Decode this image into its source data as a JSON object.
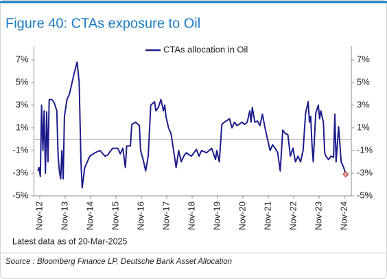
{
  "chart_data": {
    "type": "line",
    "title": "Figure 40: CTAs exposure to Oil",
    "note": "Latest data as of 20-Mar-2025",
    "source": "Source : Bloomberg Finance LP, Deutsche Bank Asset Allocation",
    "legend_position": "top",
    "xlim": [
      2012.6,
      2025.1
    ],
    "xticks": [
      {
        "value": 2012.83,
        "label": "Nov-12"
      },
      {
        "value": 2013.83,
        "label": "Nov-13"
      },
      {
        "value": 2014.83,
        "label": "Nov-14"
      },
      {
        "value": 2015.83,
        "label": "Nov-15"
      },
      {
        "value": 2016.83,
        "label": "Nov-16"
      },
      {
        "value": 2017.83,
        "label": "Nov-17"
      },
      {
        "value": 2018.83,
        "label": "Nov-18"
      },
      {
        "value": 2019.83,
        "label": "Nov-19"
      },
      {
        "value": 2020.83,
        "label": "Nov-20"
      },
      {
        "value": 2021.83,
        "label": "Nov-21"
      },
      {
        "value": 2022.83,
        "label": "Nov-22"
      },
      {
        "value": 2023.83,
        "label": "Nov-23"
      },
      {
        "value": 2024.83,
        "label": "Nov-24"
      }
    ],
    "ylim": [
      -5,
      7
    ],
    "yticks": [
      {
        "value": 7,
        "label": "7%"
      },
      {
        "value": 5,
        "label": "5%"
      },
      {
        "value": 3,
        "label": "3%"
      },
      {
        "value": 1,
        "label": "1%"
      },
      {
        "value": -1,
        "label": "-1%"
      },
      {
        "value": -3,
        "label": "-3%"
      },
      {
        "value": -5,
        "label": "-5%"
      }
    ],
    "y2lim": [
      -5,
      7
    ],
    "y2ticks": [
      {
        "value": 7,
        "label": "7%"
      },
      {
        "value": 5,
        "label": "5%"
      },
      {
        "value": 3,
        "label": "3%"
      },
      {
        "value": 1,
        "label": "1%"
      },
      {
        "value": -1,
        "label": "-1%"
      },
      {
        "value": -3,
        "label": "-3%"
      },
      {
        "value": -5,
        "label": "-5%"
      }
    ],
    "zero_line": true,
    "last_point_marker_color": "#f29a9a",
    "x": [
      2012.75,
      2012.8,
      2012.85,
      2012.9,
      2012.95,
      2013.0,
      2013.05,
      2013.1,
      2013.15,
      2013.2,
      2013.3,
      2013.4,
      2013.5,
      2013.55,
      2013.6,
      2013.65,
      2013.7,
      2013.75,
      2013.8,
      2013.9,
      2014.0,
      2014.15,
      2014.3,
      2014.38,
      2014.45,
      2014.5,
      2014.6,
      2014.7,
      2014.8,
      2015.0,
      2015.2,
      2015.4,
      2015.5,
      2015.7,
      2015.9,
      2016.0,
      2016.1,
      2016.2,
      2016.25,
      2016.4,
      2016.45,
      2016.6,
      2016.75,
      2016.8,
      2016.9,
      2017.0,
      2017.1,
      2017.2,
      2017.35,
      2017.4,
      2017.5,
      2017.6,
      2017.7,
      2017.75,
      2017.8,
      2017.9,
      2018.0,
      2018.1,
      2018.2,
      2018.3,
      2018.4,
      2018.5,
      2018.6,
      2018.8,
      2019.0,
      2019.1,
      2019.2,
      2019.4,
      2019.6,
      2019.75,
      2019.8,
      2019.9,
      2020.0,
      2020.1,
      2020.3,
      2020.4,
      2020.5,
      2020.6,
      2020.8,
      2020.9,
      2021.0,
      2021.1,
      2021.15,
      2021.2,
      2021.3,
      2021.4,
      2021.5,
      2021.6,
      2021.7,
      2021.8,
      2021.9,
      2022.0,
      2022.1,
      2022.2,
      2022.3,
      2022.4,
      2022.5,
      2022.6,
      2022.7,
      2022.8,
      2022.9,
      2023.0,
      2023.1,
      2023.2,
      2023.3,
      2023.4,
      2023.45,
      2023.5,
      2023.55,
      2023.6,
      2023.7,
      2023.8,
      2023.85,
      2023.9,
      2024.0,
      2024.05,
      2024.1,
      2024.2,
      2024.3,
      2024.4,
      2024.45,
      2024.5,
      2024.6,
      2024.7,
      2024.8,
      2024.88
    ],
    "series": [
      {
        "name": "CTAs allocation in Oil",
        "color": "#1c1c8c",
        "values": [
          -2.8,
          -2.5,
          -3.3,
          3.0,
          -1.0,
          2.5,
          -3.0,
          2.4,
          -2.0,
          3.5,
          3.5,
          3.2,
          2.5,
          -1.5,
          -2.8,
          -3.5,
          -1.0,
          -3.5,
          2.0,
          3.5,
          4.0,
          5.5,
          6.8,
          5.0,
          -2.0,
          -4.3,
          -2.5,
          -2.0,
          -1.5,
          -1.2,
          -1.0,
          -1.5,
          -1.4,
          -0.8,
          -0.8,
          -1.3,
          -0.8,
          -2.5,
          -0.6,
          -0.6,
          1.3,
          1.5,
          1.2,
          -1.0,
          -1.8,
          -2.8,
          -1.5,
          3.0,
          3.3,
          2.5,
          2.8,
          3.5,
          2.5,
          3.0,
          2.0,
          1.0,
          0.5,
          -1.0,
          -2.5,
          -1.0,
          -2.0,
          -1.5,
          -1.2,
          -1.5,
          -0.9,
          -1.5,
          -1.0,
          -1.2,
          -0.8,
          -1.8,
          -1.0,
          -2.0,
          1.3,
          1.5,
          1.8,
          1.0,
          1.5,
          1.2,
          1.5,
          1.3,
          1.5,
          2.5,
          1.5,
          2.8,
          1.5,
          1.6,
          1.2,
          2.2,
          1.0,
          0.0,
          -1.0,
          -0.5,
          -0.8,
          -1.2,
          -2.8,
          0.8,
          0.5,
          0.4,
          -1.5,
          -0.8,
          -2.0,
          -1.5,
          -2.0,
          -1.0,
          2.3,
          3.3,
          1.5,
          2.0,
          -0.5,
          -2.0,
          2.3,
          3.0,
          1.8,
          2.5,
          1.5,
          -1.2,
          -1.5,
          -1.8,
          -1.5,
          -1.6,
          2.2,
          -2.0,
          1.1,
          -2.0,
          -2.5,
          -3.1
        ]
      }
    ]
  }
}
